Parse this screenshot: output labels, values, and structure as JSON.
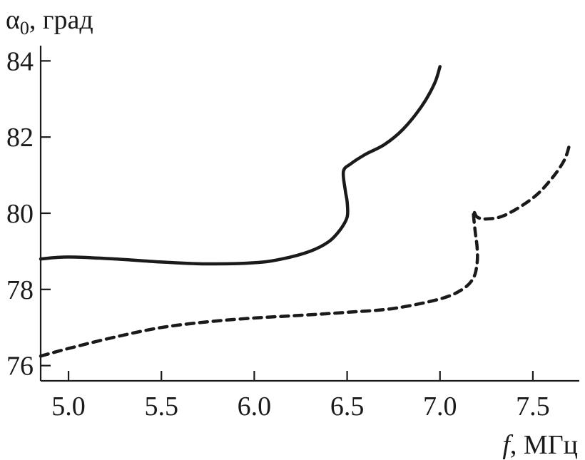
{
  "chart_data": {
    "type": "line",
    "ylabel_symbol": "α",
    "ylabel_subscript": "0",
    "ylabel_unit": ", град",
    "xlabel_symbol": "f",
    "xlabel_unit": ", МГц",
    "xlim": [
      4.85,
      7.75
    ],
    "ylim": [
      75.6,
      84.4
    ],
    "xticks": [
      5.0,
      5.5,
      6.0,
      6.5,
      7.0,
      7.5
    ],
    "xtick_labels": [
      "5.0",
      "5.5",
      "6.0",
      "6.5",
      "7.0",
      "7.5"
    ],
    "yticks": [
      76,
      78,
      80,
      82,
      84
    ],
    "ytick_labels": [
      "76",
      "78",
      "80",
      "82",
      "84"
    ],
    "grid": false,
    "series": [
      {
        "style": "solid",
        "x": [
          4.85,
          5.0,
          5.25,
          5.5,
          5.75,
          6.0,
          6.15,
          6.3,
          6.4,
          6.46,
          6.5,
          6.5,
          6.49,
          6.48,
          6.52,
          6.6,
          6.7,
          6.8,
          6.9,
          6.97,
          7.0
        ],
        "y": [
          78.8,
          78.85,
          78.8,
          78.72,
          78.67,
          78.7,
          78.8,
          79.0,
          79.25,
          79.55,
          79.9,
          80.3,
          80.6,
          81.1,
          81.3,
          81.55,
          81.8,
          82.2,
          82.8,
          83.4,
          83.85
        ]
      },
      {
        "style": "dashed",
        "x": [
          4.85,
          5.0,
          5.25,
          5.5,
          5.75,
          6.0,
          6.25,
          6.5,
          6.75,
          7.0,
          7.12,
          7.18,
          7.2,
          7.2,
          7.19,
          7.18,
          7.2,
          7.25,
          7.35,
          7.5,
          7.6,
          7.67,
          7.7
        ],
        "y": [
          76.25,
          76.45,
          76.75,
          77.0,
          77.15,
          77.25,
          77.32,
          77.4,
          77.5,
          77.75,
          78.0,
          78.3,
          78.7,
          79.1,
          79.5,
          80.05,
          79.9,
          79.85,
          79.95,
          80.4,
          80.9,
          81.4,
          81.85
        ]
      }
    ]
  }
}
